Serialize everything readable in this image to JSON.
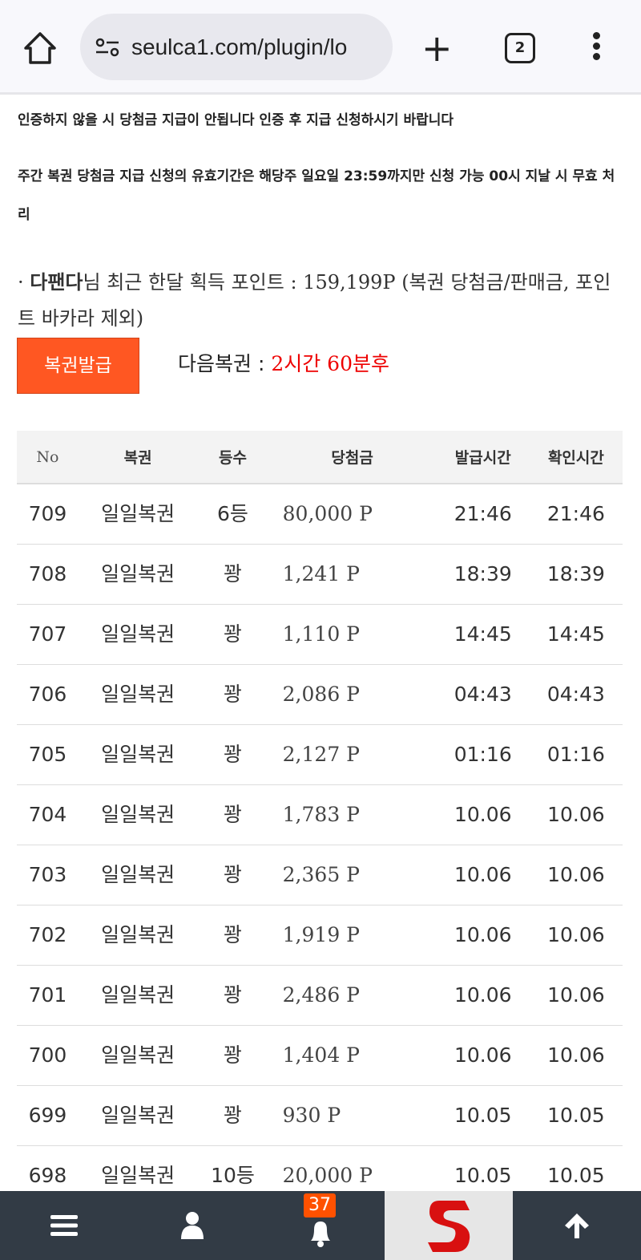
{
  "browser": {
    "url": "seulca1.com/plugin/lo",
    "tab_count": "2"
  },
  "notices": [
    "인증하지 않을 시 당첨금 지급이 안됩니다 인증 후 지급 신청하시기 바랍니다",
    "주간 복권 당첨금 지급 신청의 유효기간은 해당주 일요일 23:59까지만 신청 가능 00시 지날 시 무효 처리"
  ],
  "points": {
    "bullet": "· ",
    "user": "다팬다",
    "text": "님 최근 한달 획득 포인트 : 159,199P (복권 당첨금/판매금, 포인트 바카라 제외)"
  },
  "issue_button": "복권발급",
  "next": {
    "label": "다음복권 : ",
    "value": "2시간 60분후"
  },
  "table": {
    "headers": [
      "No",
      "복권",
      "등수",
      "당첨금",
      "발급시간",
      "확인시간"
    ],
    "rows": [
      [
        "709",
        "일일복권",
        "6등",
        "80,000 P",
        "21:46",
        "21:46"
      ],
      [
        "708",
        "일일복권",
        "꽝",
        "1,241 P",
        "18:39",
        "18:39"
      ],
      [
        "707",
        "일일복권",
        "꽝",
        "1,110 P",
        "14:45",
        "14:45"
      ],
      [
        "706",
        "일일복권",
        "꽝",
        "2,086 P",
        "04:43",
        "04:43"
      ],
      [
        "705",
        "일일복권",
        "꽝",
        "2,127 P",
        "01:16",
        "01:16"
      ],
      [
        "704",
        "일일복권",
        "꽝",
        "1,783 P",
        "10.06",
        "10.06"
      ],
      [
        "703",
        "일일복권",
        "꽝",
        "2,365 P",
        "10.06",
        "10.06"
      ],
      [
        "702",
        "일일복권",
        "꽝",
        "1,919 P",
        "10.06",
        "10.06"
      ],
      [
        "701",
        "일일복권",
        "꽝",
        "2,486 P",
        "10.06",
        "10.06"
      ],
      [
        "700",
        "일일복권",
        "꽝",
        "1,404 P",
        "10.06",
        "10.06"
      ],
      [
        "699",
        "일일복권",
        "꽝",
        "930 P",
        "10.05",
        "10.05"
      ],
      [
        "698",
        "일일복권",
        "10등",
        "20,000 P",
        "10.05",
        "10.05"
      ]
    ]
  },
  "bottom_nav": {
    "notification_count": "37",
    "logo_text": "S"
  },
  "colors": {
    "accent": "#ff5722",
    "next_time": "#e00000",
    "nav_bg": "#323b45"
  }
}
